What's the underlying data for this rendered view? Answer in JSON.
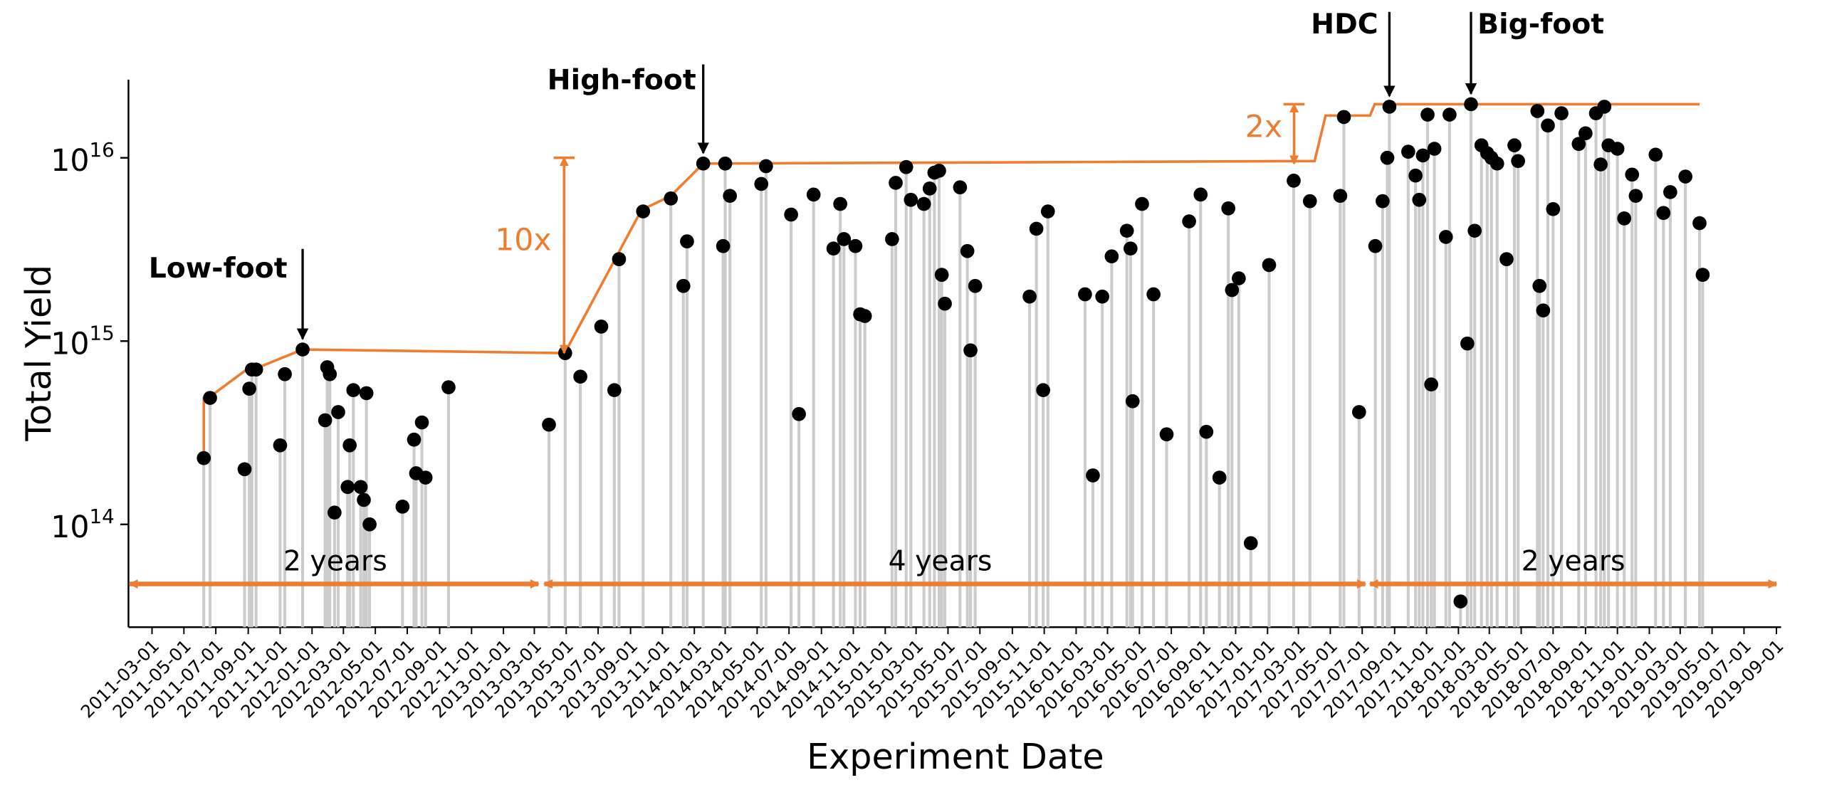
{
  "chart_data": {
    "type": "stem",
    "xlabel": "Experiment Date",
    "ylabel": "Total Yield",
    "log_y": true,
    "xlim": [
      "2011-01-15",
      "2019-09-10"
    ],
    "xticks": [
      "2011-03-01",
      "2011-05-01",
      "2011-07-01",
      "2011-09-01",
      "2011-11-01",
      "2012-01-01",
      "2012-03-01",
      "2012-05-01",
      "2012-07-01",
      "2012-09-01",
      "2012-11-01",
      "2013-01-01",
      "2013-03-01",
      "2013-05-01",
      "2013-07-01",
      "2013-09-01",
      "2013-11-01",
      "2014-01-01",
      "2014-03-01",
      "2014-05-01",
      "2014-07-01",
      "2014-09-01",
      "2014-11-01",
      "2015-01-01",
      "2015-03-01",
      "2015-05-01",
      "2015-07-01",
      "2015-09-01",
      "2015-11-01",
      "2016-01-01",
      "2016-03-01",
      "2016-05-01",
      "2016-07-01",
      "2016-09-01",
      "2016-11-01",
      "2017-01-01",
      "2017-03-01",
      "2017-05-01",
      "2017-07-01",
      "2017-09-01",
      "2017-11-01",
      "2018-01-01",
      "2018-03-01",
      "2018-05-01",
      "2018-07-01",
      "2018-09-01",
      "2018-11-01",
      "2019-01-01",
      "2019-03-01",
      "2019-05-01",
      "2019-07-01",
      "2019-09-01"
    ],
    "ylim": [
      27500000000000.0,
      2.67e+16
    ],
    "yticks": [
      {
        "value": 100000000000000.0,
        "label": "10^14"
      },
      {
        "value": 1000000000000000.0,
        "label": "10^15"
      },
      {
        "value": 1e+16,
        "label": "10^16"
      }
    ],
    "points": {
      "color": "#000000",
      "stem_color": "#cccccc",
      "x": [
        "2011-06-08",
        "2011-06-20",
        "2011-08-25",
        "2011-09-03",
        "2011-09-08",
        "2011-09-16",
        "2011-11-01",
        "2011-11-10",
        "2011-12-14",
        "2012-01-26",
        "2012-01-30",
        "2012-02-04",
        "2012-02-13",
        "2012-02-20",
        "2012-03-09",
        "2012-03-13",
        "2012-03-20",
        "2012-04-03",
        "2012-04-09",
        "2012-04-14",
        "2012-04-20",
        "2012-06-22",
        "2012-07-14",
        "2012-07-18",
        "2012-07-29",
        "2012-08-05",
        "2012-09-18",
        "2013-03-29",
        "2013-04-29",
        "2013-05-28",
        "2013-07-07",
        "2013-08-01",
        "2013-08-10",
        "2013-09-25",
        "2013-11-17",
        "2013-12-11",
        "2013-12-18",
        "2014-01-18",
        "2014-02-25",
        "2014-03-01",
        "2014-03-10",
        "2014-05-09",
        "2014-05-18",
        "2014-07-05",
        "2014-07-20",
        "2014-08-17",
        "2014-09-24",
        "2014-10-07",
        "2014-10-14",
        "2014-11-05",
        "2014-11-14",
        "2014-11-23",
        "2015-01-14",
        "2015-01-21",
        "2015-02-10",
        "2015-02-19",
        "2015-03-16",
        "2015-03-27",
        "2015-04-05",
        "2015-04-14",
        "2015-04-19",
        "2015-04-25",
        "2015-05-24",
        "2015-06-07",
        "2015-06-13",
        "2015-06-22",
        "2015-10-04",
        "2015-10-17",
        "2015-10-30",
        "2015-11-08",
        "2016-01-18",
        "2016-02-02",
        "2016-02-20",
        "2016-03-09",
        "2016-04-07",
        "2016-04-14",
        "2016-04-18",
        "2016-05-06",
        "2016-05-28",
        "2016-06-22",
        "2016-08-04",
        "2016-08-26",
        "2016-09-06",
        "2016-10-01",
        "2016-10-18",
        "2016-10-25",
        "2016-11-07",
        "2016-11-30",
        "2017-01-04",
        "2017-02-20",
        "2017-03-23",
        "2017-05-20",
        "2017-05-27",
        "2017-06-25",
        "2017-07-26",
        "2017-08-09",
        "2017-08-18",
        "2017-08-22",
        "2017-09-27",
        "2017-10-11",
        "2017-10-18",
        "2017-10-25",
        "2017-11-03",
        "2017-11-10",
        "2017-11-16",
        "2017-12-08",
        "2017-12-15",
        "2018-01-18",
        "2018-01-25",
        "2018-01-05",
        "2018-02-01",
        "2018-02-14",
        "2018-02-25",
        "2018-03-05",
        "2018-03-16",
        "2018-04-03",
        "2018-04-18",
        "2018-04-25",
        "2018-06-01",
        "2018-06-05",
        "2018-06-12",
        "2018-06-21",
        "2018-07-01",
        "2018-07-17",
        "2018-08-19",
        "2018-09-01",
        "2018-09-21",
        "2018-09-30",
        "2018-10-07",
        "2018-10-15",
        "2018-11-01",
        "2018-11-14",
        "2018-11-29",
        "2018-12-06",
        "2019-01-13",
        "2019-01-28",
        "2019-02-10",
        "2019-03-11",
        "2019-04-07",
        "2019-04-13"
      ],
      "values": [
        230000000000000.0,
        490000000000000.0,
        200000000000000.0,
        550000000000000.0,
        700000000000000.0,
        700000000000000.0,
        270000000000000.0,
        660000000000000.0,
        900000000000000.0,
        370000000000000.0,
        720000000000000.0,
        660000000000000.0,
        116000000000000.0,
        410000000000000.0,
        160000000000000.0,
        270000000000000.0,
        540000000000000.0,
        160000000000000.0,
        136000000000000.0,
        520000000000000.0,
        100000000000000.0,
        125000000000000.0,
        290000000000000.0,
        190000000000000.0,
        360000000000000.0,
        180000000000000.0,
        560000000000000.0,
        350000000000000.0,
        860000000000000.0,
        640000000000000.0,
        1200000000000000.0,
        540000000000000.0,
        2800000000000000.0,
        5100000000000000.0,
        6000000000000000.0,
        2000000000000000.0,
        3500000000000000.0,
        9300000000000000.0,
        3300000000000000.0,
        9300000000000000.0,
        6200000000000000.0,
        7200000000000000.0,
        9000000000000000.0,
        4900000000000000.0,
        400000000000000.0,
        6300000000000000.0,
        3200000000000000.0,
        5600000000000000.0,
        3600000000000000.0,
        3300000000000000.0,
        1400000000000000.0,
        1370000000000000.0,
        3600000000000000.0,
        7300000000000000.0,
        8900000000000000.0,
        5900000000000000.0,
        5600000000000000.0,
        6800000000000000.0,
        8300000000000000.0,
        8500000000000000.0,
        2300000000000000.0,
        1600000000000000.0,
        6900000000000000.0,
        3100000000000000.0,
        890000000000000.0,
        2000000000000000.0,
        1750000000000000.0,
        4100000000000000.0,
        540000000000000.0,
        5100000000000000.0,
        1800000000000000.0,
        185000000000000.0,
        1750000000000000.0,
        2900000000000000.0,
        4000000000000000.0,
        3200000000000000.0,
        470000000000000.0,
        5600000000000000.0,
        1800000000000000.0,
        310000000000000.0,
        4500000000000000.0,
        6300000000000000.0,
        320000000000000.0,
        180000000000000.0,
        5300000000000000.0,
        1900000000000000.0,
        2200000000000000.0,
        79000000000000.0,
        2600000000000000.0,
        7500000000000000.0,
        5800000000000000.0,
        6200000000000000.0,
        1.67e+16,
        410000000000000.0,
        3300000000000000.0,
        5800000000000000.0,
        1e+16,
        1.9e+16,
        1.08e+16,
        8000000000000000.0,
        5900000000000000.0,
        1.03e+16,
        1.72e+16,
        580000000000000.0,
        1.12e+16,
        3700000000000000.0,
        1.72e+16,
        970000000000000.0,
        1.96e+16,
        38000000000000.0,
        4000000000000000.0,
        1.17e+16,
        1.06e+16,
        1e+16,
        9300000000000000.0,
        2800000000000000.0,
        1.17e+16,
        9600000000000000.0,
        1.8e+16,
        2000000000000000.0,
        1470000000000000.0,
        1.5e+16,
        5250000000000000.0,
        1.75e+16,
        1.19e+16,
        1.36e+16,
        1.75e+16,
        9200000000000000.0,
        1.9e+16,
        1.17e+16,
        1.12e+16,
        4670000000000000.0,
        8100000000000000.0,
        6200000000000000.0,
        1.04e+16,
        5000000000000000.0,
        6500000000000000.0,
        7900000000000000.0,
        4400000000000000.0,
        2300000000000000.0
      ]
    },
    "envelope": {
      "color": "#ed7d31",
      "x": [
        "2011-06-08",
        "2011-06-08",
        "2011-06-25",
        "2011-09-01",
        "2011-09-16",
        "2011-12-14",
        "2013-04-25",
        "2013-05-01",
        "2013-09-22",
        "2013-11-17",
        "2014-01-18",
        "2017-04-01",
        "2017-04-22",
        "2017-07-16",
        "2017-07-25",
        "2019-04-07"
      ],
      "values": [
        230000000000000.0,
        490000000000000.0,
        510000000000000.0,
        710000000000000.0,
        710000000000000.0,
        900000000000000.0,
        860000000000000.0,
        890000000000000.0,
        5200000000000000.0,
        6200000000000000.0,
        9300000000000000.0,
        9600000000000000.0,
        1.7e+16,
        1.7e+16,
        1.96e+16,
        1.96e+16
      ]
    },
    "annotations": [
      "Low-foot",
      "High-foot",
      "HDC",
      "Big-foot",
      "10x",
      "2x",
      "2 years",
      "4 years",
      "2 years"
    ]
  }
}
